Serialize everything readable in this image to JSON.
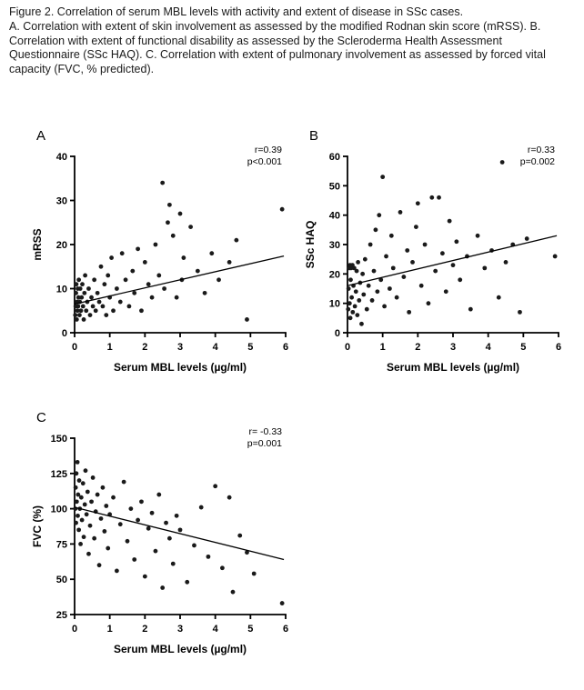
{
  "caption": {
    "title": "Figure 2. Correlation of serum MBL levels with activity and extent of disease in SSc cases.",
    "body": "A. Correlation with extent of skin involvement as assessed by the modified Rodnan skin score (mRSS). B. Correlation with extent of functional disability as assessed by the Scleroderma Health Assessment Questionnaire (SSc HAQ). C. Correlation with extent of pulmonary involvement as assessed by forced vital capacity (FVC, % predicted)."
  },
  "colors": {
    "point": "#1a1a1a",
    "axis": "#000000",
    "line": "#000000",
    "text": "#000000",
    "background": "#ffffff"
  },
  "chart_data": [
    {
      "type": "scatter",
      "panel_label": "A",
      "xlabel": "Serum MBL levels (µg/ml)",
      "ylabel": "mRSS",
      "xlim": [
        0,
        6
      ],
      "ylim": [
        0,
        40
      ],
      "xticks": [
        0,
        1,
        2,
        3,
        4,
        5,
        6
      ],
      "yticks": [
        0,
        10,
        20,
        30,
        40
      ],
      "annotation_r": "r=0.39",
      "annotation_p": "p<0.001",
      "regression": {
        "x1": 0,
        "y1": 6.5,
        "x2": 5.95,
        "y2": 17.4
      },
      "points": [
        [
          0.02,
          4
        ],
        [
          0.03,
          6
        ],
        [
          0.04,
          9
        ],
        [
          0.05,
          11
        ],
        [
          0.06,
          3
        ],
        [
          0.07,
          7
        ],
        [
          0.08,
          5
        ],
        [
          0.09,
          10
        ],
        [
          0.1,
          6
        ],
        [
          0.11,
          8
        ],
        [
          0.12,
          12
        ],
        [
          0.14,
          4
        ],
        [
          0.15,
          7
        ],
        [
          0.16,
          10
        ],
        [
          0.18,
          5
        ],
        [
          0.2,
          8
        ],
        [
          0.22,
          11
        ],
        [
          0.24,
          6
        ],
        [
          0.26,
          3
        ],
        [
          0.28,
          9
        ],
        [
          0.3,
          13
        ],
        [
          0.33,
          5
        ],
        [
          0.36,
          7
        ],
        [
          0.4,
          10
        ],
        [
          0.44,
          4
        ],
        [
          0.48,
          8
        ],
        [
          0.52,
          6
        ],
        [
          0.56,
          12
        ],
        [
          0.6,
          5
        ],
        [
          0.65,
          9
        ],
        [
          0.7,
          7
        ],
        [
          0.75,
          15
        ],
        [
          0.8,
          6
        ],
        [
          0.85,
          11
        ],
        [
          0.9,
          4
        ],
        [
          0.95,
          13
        ],
        [
          1.0,
          8
        ],
        [
          1.05,
          17
        ],
        [
          1.1,
          5
        ],
        [
          1.2,
          10
        ],
        [
          1.3,
          7
        ],
        [
          1.35,
          18
        ],
        [
          1.45,
          12
        ],
        [
          1.55,
          6
        ],
        [
          1.65,
          14
        ],
        [
          1.7,
          9
        ],
        [
          1.8,
          19
        ],
        [
          1.9,
          5
        ],
        [
          2.0,
          16
        ],
        [
          2.1,
          11
        ],
        [
          2.2,
          8
        ],
        [
          2.3,
          20
        ],
        [
          2.4,
          13
        ],
        [
          2.5,
          34
        ],
        [
          2.55,
          10
        ],
        [
          2.65,
          25
        ],
        [
          2.7,
          29
        ],
        [
          2.8,
          22
        ],
        [
          2.9,
          8
        ],
        [
          3.0,
          27
        ],
        [
          3.05,
          12
        ],
        [
          3.1,
          17
        ],
        [
          3.3,
          24
        ],
        [
          3.5,
          14
        ],
        [
          3.7,
          9
        ],
        [
          3.9,
          18
        ],
        [
          4.1,
          12
        ],
        [
          4.4,
          16
        ],
        [
          4.6,
          21
        ],
        [
          4.9,
          3
        ],
        [
          5.9,
          28
        ]
      ]
    },
    {
      "type": "scatter",
      "panel_label": "B",
      "xlabel": "Serum MBL levels (µg/ml)",
      "ylabel": "SSc HAQ",
      "xlim": [
        0,
        6
      ],
      "ylim": [
        0,
        60
      ],
      "xticks": [
        0,
        1,
        2,
        3,
        4,
        5,
        6
      ],
      "yticks": [
        0,
        10,
        20,
        30,
        40,
        50,
        60
      ],
      "annotation_r": "r=0.33",
      "annotation_p": "p=0.002",
      "regression": {
        "x1": 0,
        "y1": 16,
        "x2": 5.95,
        "y2": 33
      },
      "points": [
        [
          0.02,
          8
        ],
        [
          0.03,
          15
        ],
        [
          0.05,
          22
        ],
        [
          0.06,
          10
        ],
        [
          0.07,
          23
        ],
        [
          0.08,
          5
        ],
        [
          0.09,
          18
        ],
        [
          0.1,
          22
        ],
        [
          0.12,
          12
        ],
        [
          0.14,
          23
        ],
        [
          0.15,
          7
        ],
        [
          0.17,
          16
        ],
        [
          0.19,
          22
        ],
        [
          0.21,
          9
        ],
        [
          0.24,
          14
        ],
        [
          0.26,
          21
        ],
        [
          0.28,
          6
        ],
        [
          0.3,
          24
        ],
        [
          0.33,
          11
        ],
        [
          0.36,
          17
        ],
        [
          0.4,
          3
        ],
        [
          0.43,
          20
        ],
        [
          0.46,
          13
        ],
        [
          0.5,
          25
        ],
        [
          0.55,
          8
        ],
        [
          0.6,
          16
        ],
        [
          0.65,
          30
        ],
        [
          0.7,
          11
        ],
        [
          0.75,
          21
        ],
        [
          0.8,
          35
        ],
        [
          0.85,
          14
        ],
        [
          0.9,
          40
        ],
        [
          0.95,
          18
        ],
        [
          1.0,
          53
        ],
        [
          1.05,
          9
        ],
        [
          1.1,
          26
        ],
        [
          1.2,
          15
        ],
        [
          1.25,
          33
        ],
        [
          1.3,
          22
        ],
        [
          1.4,
          12
        ],
        [
          1.5,
          41
        ],
        [
          1.6,
          19
        ],
        [
          1.7,
          28
        ],
        [
          1.75,
          7
        ],
        [
          1.85,
          24
        ],
        [
          1.95,
          36
        ],
        [
          2.0,
          44
        ],
        [
          2.1,
          16
        ],
        [
          2.2,
          30
        ],
        [
          2.3,
          10
        ],
        [
          2.4,
          46
        ],
        [
          2.5,
          21
        ],
        [
          2.6,
          46
        ],
        [
          2.7,
          27
        ],
        [
          2.8,
          14
        ],
        [
          2.9,
          38
        ],
        [
          3.0,
          23
        ],
        [
          3.1,
          31
        ],
        [
          3.2,
          18
        ],
        [
          3.4,
          26
        ],
        [
          3.5,
          8
        ],
        [
          3.7,
          33
        ],
        [
          3.9,
          22
        ],
        [
          4.1,
          28
        ],
        [
          4.3,
          12
        ],
        [
          4.4,
          58
        ],
        [
          4.5,
          24
        ],
        [
          4.7,
          30
        ],
        [
          4.9,
          7
        ],
        [
          5.1,
          32
        ],
        [
          5.9,
          26
        ]
      ]
    },
    {
      "type": "scatter",
      "panel_label": "C",
      "xlabel": "Serum MBL levels (µg/ml)",
      "ylabel": "FVC (%)",
      "xlim": [
        0,
        6
      ],
      "ylim": [
        25,
        150
      ],
      "xticks": [
        0,
        1,
        2,
        3,
        4,
        5,
        6
      ],
      "yticks": [
        25,
        50,
        75,
        100,
        125,
        150
      ],
      "annotation_r": "r= -0.33",
      "annotation_p": "p=0.001",
      "regression": {
        "x1": 0,
        "y1": 101,
        "x2": 5.95,
        "y2": 64
      },
      "points": [
        [
          0.02,
          100
        ],
        [
          0.03,
          115
        ],
        [
          0.04,
          90
        ],
        [
          0.05,
          125
        ],
        [
          0.06,
          105
        ],
        [
          0.08,
          133
        ],
        [
          0.09,
          95
        ],
        [
          0.1,
          110
        ],
        [
          0.12,
          85
        ],
        [
          0.13,
          120
        ],
        [
          0.15,
          100
        ],
        [
          0.17,
          75
        ],
        [
          0.19,
          108
        ],
        [
          0.21,
          92
        ],
        [
          0.24,
          118
        ],
        [
          0.26,
          80
        ],
        [
          0.29,
          103
        ],
        [
          0.31,
          127
        ],
        [
          0.34,
          96
        ],
        [
          0.37,
          112
        ],
        [
          0.4,
          68
        ],
        [
          0.44,
          88
        ],
        [
          0.48,
          105
        ],
        [
          0.52,
          122
        ],
        [
          0.56,
          79
        ],
        [
          0.6,
          98
        ],
        [
          0.65,
          110
        ],
        [
          0.7,
          60
        ],
        [
          0.75,
          93
        ],
        [
          0.8,
          115
        ],
        [
          0.85,
          84
        ],
        [
          0.9,
          102
        ],
        [
          0.95,
          72
        ],
        [
          1.0,
          96
        ],
        [
          1.1,
          108
        ],
        [
          1.2,
          56
        ],
        [
          1.3,
          89
        ],
        [
          1.4,
          119
        ],
        [
          1.5,
          77
        ],
        [
          1.6,
          100
        ],
        [
          1.7,
          64
        ],
        [
          1.8,
          92
        ],
        [
          1.9,
          105
        ],
        [
          2.0,
          52
        ],
        [
          2.1,
          86
        ],
        [
          2.2,
          97
        ],
        [
          2.3,
          70
        ],
        [
          2.4,
          110
        ],
        [
          2.5,
          44
        ],
        [
          2.6,
          90
        ],
        [
          2.7,
          79
        ],
        [
          2.8,
          61
        ],
        [
          2.9,
          95
        ],
        [
          3.0,
          85
        ],
        [
          3.2,
          48
        ],
        [
          3.4,
          74
        ],
        [
          3.6,
          101
        ],
        [
          3.8,
          66
        ],
        [
          4.0,
          116
        ],
        [
          4.2,
          58
        ],
        [
          4.4,
          108
        ],
        [
          4.5,
          41
        ],
        [
          4.7,
          81
        ],
        [
          4.9,
          69
        ],
        [
          5.1,
          54
        ],
        [
          5.9,
          33
        ]
      ]
    }
  ]
}
